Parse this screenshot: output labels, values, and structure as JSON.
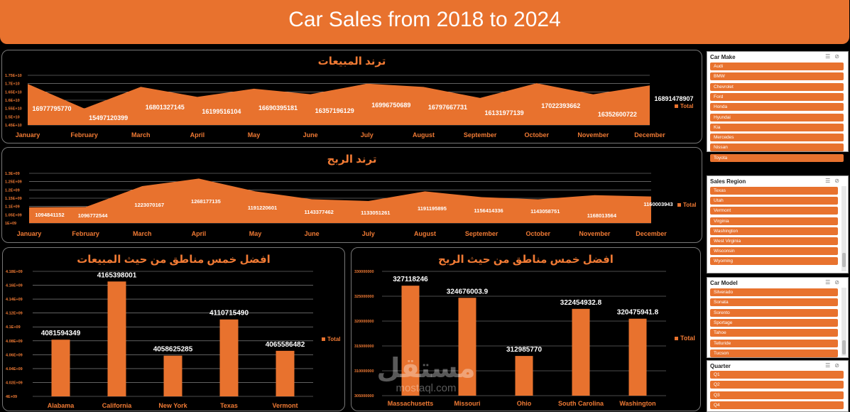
{
  "header": {
    "title": "Car Sales from 2018 to 2024"
  },
  "legend_label": "Total",
  "months": [
    "January",
    "February",
    "March",
    "April",
    "May",
    "June",
    "July",
    "August",
    "September",
    "October",
    "November",
    "December"
  ],
  "sales_trend": {
    "title": "ترند المبيعات",
    "yticks": [
      "1.75E+10",
      "1.7E+10",
      "1.65E+10",
      "1.6E+10",
      "1.55E+10",
      "1.5E+10",
      "1.45E+10"
    ],
    "values": [
      "16977795770",
      "15497120399",
      "16801327145",
      "16199516104",
      "16690395181",
      "16357196129",
      "16996750689",
      "16797667731",
      "16131977139",
      "17022393662",
      "16352600722",
      "16891478907"
    ]
  },
  "profit_trend": {
    "title": "ترند الربح",
    "yticks": [
      "1.3E+09",
      "1.25E+09",
      "1.2E+09",
      "1.15E+09",
      "1.1E+09",
      "1.05E+09",
      "1E+09"
    ],
    "values": [
      "1094841152",
      "1096772544",
      "1223070167",
      "1268177135",
      "1191220601",
      "1143377462",
      "1133051261",
      "1191195895",
      "1156414336",
      "1143058751",
      "1168013564",
      "1160003943"
    ]
  },
  "top5_sales": {
    "title": "افضل خمس مناطق من حيث المبيعات",
    "yticks": [
      "4.18E+09",
      "4.16E+09",
      "4.14E+09",
      "4.12E+09",
      "4.1E+09",
      "4.08E+09",
      "4.06E+09",
      "4.04E+09",
      "4.02E+09",
      "4E+09"
    ],
    "categories": [
      "Alabama",
      "California",
      "New York",
      "Texas",
      "Vermont"
    ],
    "values": [
      "4081594349",
      "4165398001",
      "4058625285",
      "4110715490",
      "4065586482"
    ]
  },
  "top5_profit": {
    "title": "افضل خمس مناطق من حيث الربح",
    "yticks": [
      "330000000",
      "325000000",
      "320000000",
      "315000000",
      "310000000",
      "305000000"
    ],
    "categories": [
      "Massachusetts",
      "Missouri",
      "Ohio",
      "South Carolina",
      "Washington"
    ],
    "values": [
      "327118246",
      "324676003.9",
      "312985770",
      "322454932.8",
      "320475941.8"
    ]
  },
  "slicers": {
    "car_make": {
      "title": "Car Make",
      "items": [
        "Audi",
        "BMW",
        "Chevrolet",
        "Ford",
        "Honda",
        "Hyundai",
        "Kia",
        "Mercedes",
        "Nissan",
        "Toyota"
      ]
    },
    "sales_region": {
      "title": "Sales Region",
      "items": [
        "Texas",
        "Utah",
        "Vermont",
        "Virginia",
        "Washington",
        "West Virginia",
        "Wisconsin",
        "Wyoming"
      ]
    },
    "car_model": {
      "title": "Car Model",
      "items": [
        "Silverado",
        "Sonata",
        "Sorento",
        "Sportage",
        "Tahoe",
        "Telluride",
        "Tucson"
      ]
    },
    "quarter": {
      "title": "Quarter",
      "items": [
        "Q1",
        "Q2",
        "Q3",
        "Q4"
      ]
    }
  },
  "watermark": {
    "brand": "مستقل",
    "site": "mostaql.com"
  },
  "chart_data": [
    {
      "type": "area",
      "title": "ترند المبيعات",
      "x": [
        "January",
        "February",
        "March",
        "April",
        "May",
        "June",
        "July",
        "August",
        "September",
        "October",
        "November",
        "December"
      ],
      "series": [
        {
          "name": "Total",
          "values": [
            16977795770,
            15497120399,
            16801327145,
            16199516104,
            16690395181,
            16357196129,
            16996750689,
            16797667731,
            16131977139,
            17022393662,
            16352600722,
            16891478907
          ]
        }
      ],
      "ylim": [
        14500000000,
        17500000000
      ],
      "grid": true,
      "legend": "right"
    },
    {
      "type": "area",
      "title": "ترند الربح",
      "x": [
        "January",
        "February",
        "March",
        "April",
        "May",
        "June",
        "July",
        "August",
        "September",
        "October",
        "November",
        "December"
      ],
      "series": [
        {
          "name": "Total",
          "values": [
            1094841152,
            1096772544,
            1223070167,
            1268177135,
            1191220601,
            1143377462,
            1133051261,
            1191195895,
            1156414336,
            1143058751,
            1168013564,
            1160003943
          ]
        }
      ],
      "ylim": [
        1000000000,
        1300000000
      ],
      "grid": true,
      "legend": "right"
    },
    {
      "type": "bar",
      "title": "افضل خمس مناطق من حيث المبيعات",
      "categories": [
        "Alabama",
        "California",
        "New York",
        "Texas",
        "Vermont"
      ],
      "series": [
        {
          "name": "Total",
          "values": [
            4081594349,
            4165398001,
            4058625285,
            4110715490,
            4065586482
          ]
        }
      ],
      "ylim": [
        4000000000,
        4180000000
      ],
      "grid": true,
      "legend": "right"
    },
    {
      "type": "bar",
      "title": "افضل خمس مناطق من حيث الربح",
      "categories": [
        "Massachusetts",
        "Missouri",
        "Ohio",
        "South Carolina",
        "Washington"
      ],
      "series": [
        {
          "name": "Total",
          "values": [
            327118246,
            324676003.9,
            312985770,
            322454932.8,
            320475941.8
          ]
        }
      ],
      "ylim": [
        305000000,
        330000000
      ],
      "grid": true,
      "legend": "right"
    }
  ]
}
